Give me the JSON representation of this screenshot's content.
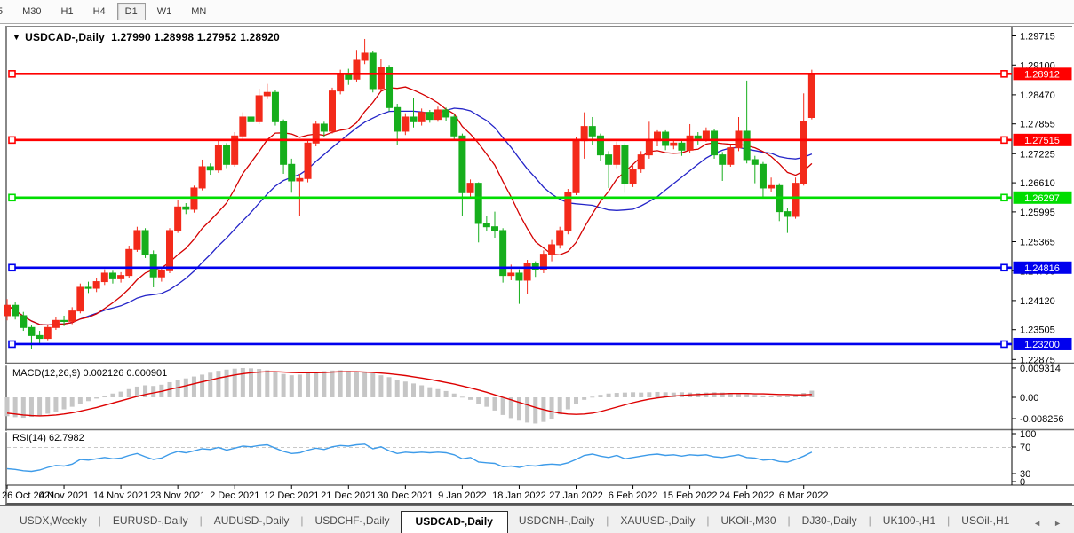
{
  "toolbar": {
    "timeframes": [
      {
        "label": "5",
        "active": false
      },
      {
        "label": "M30",
        "active": false
      },
      {
        "label": "H1",
        "active": false
      },
      {
        "label": "H4",
        "active": false
      },
      {
        "label": "D1",
        "active": true
      },
      {
        "label": "W1",
        "active": false
      },
      {
        "label": "MN",
        "active": false
      }
    ]
  },
  "chart_header": {
    "dropdown_icon": "▼",
    "symbol": "USDCAD-,Daily",
    "ohlc_text": "1.27990 1.28998 1.27952 1.28920"
  },
  "price_axis": {
    "ticks": [
      "1.29715",
      "1.29100",
      "1.28470",
      "1.27855",
      "1.27225",
      "1.26610",
      "1.25995",
      "1.25365",
      "1.24750",
      "1.24120",
      "1.23505",
      "1.22875"
    ]
  },
  "macd_panel": {
    "label": "MACD(12,26,9) 0.002126 0.000901",
    "axis_max": "0.009314",
    "axis_zero": "0.00",
    "axis_min": "-0.008256"
  },
  "rsi_panel": {
    "label": "RSI(14) 62.7982",
    "axis_levels": [
      "100",
      "70",
      "30",
      "0"
    ]
  },
  "date_axis": {
    "labels": [
      "26 Oct 2021",
      "4 Nov 2021",
      "14 Nov 2021",
      "23 Nov 2021",
      "2 Dec 2021",
      "12 Dec 2021",
      "21 Dec 2021",
      "30 Dec 2021",
      "9 Jan 2022",
      "18 Jan 2022",
      "27 Jan 2022",
      "6 Feb 2022",
      "15 Feb 2022",
      "24 Feb 2022",
      "6 Mar 2022"
    ],
    "bars_per_label": 7
  },
  "tabs": {
    "items": [
      {
        "label": "USDX,Weekly",
        "active": false
      },
      {
        "label": "EURUSD-,Daily",
        "active": false
      },
      {
        "label": "AUDUSD-,Daily",
        "active": false
      },
      {
        "label": "USDCHF-,Daily",
        "active": false
      },
      {
        "label": "USDCAD-,Daily",
        "active": true
      },
      {
        "label": "USDCNH-,Daily",
        "active": false
      },
      {
        "label": "XAUUSD-,Daily",
        "active": false
      },
      {
        "label": "UKOil-,M30",
        "active": false
      },
      {
        "label": "DJ30-,Daily",
        "active": false
      },
      {
        "label": "UK100-,H1",
        "active": false
      },
      {
        "label": "USOil-,H1",
        "active": false
      }
    ],
    "scroll_left_icon": "◄",
    "scroll_right_icon": "►"
  },
  "chart_data": {
    "type": "candlestick",
    "symbol": "USDCAD-,Daily",
    "ohlc_current": {
      "open": 1.2799,
      "high": 1.28998,
      "low": 1.27952,
      "close": 1.2892
    },
    "colors": {
      "bull": "#f32a1a",
      "bear": "#16ae1c",
      "line_red": "#ff0000",
      "line_green": "#00dd00",
      "line_blue": "#0000ee",
      "ma_fast": "#d40000",
      "ma_slow": "#2424c8",
      "macd_hist": "#c6c6c6",
      "macd_signal": "#dd0000",
      "rsi_line": "#3d9be9",
      "rsi_level": "#c8c8c8"
    },
    "hlines": [
      {
        "price": 1.28912,
        "label": "1.28912",
        "color": "#ff0000"
      },
      {
        "price": 1.27515,
        "label": "1.27515",
        "color": "#ff0000"
      },
      {
        "price": 1.26297,
        "label": "1.26297",
        "color": "#00dd00"
      },
      {
        "price": 1.24816,
        "label": "1.24816",
        "color": "#0000ee"
      },
      {
        "price": 1.232,
        "label": "1.23200",
        "color": "#0000ee"
      }
    ],
    "overlays": [
      {
        "name": "ma-fast",
        "period": 10
      },
      {
        "name": "ma-slow",
        "period": 20
      }
    ],
    "candles": [
      [
        1.238,
        1.2415,
        1.237,
        1.2402
      ],
      [
        1.2402,
        1.2408,
        1.2372,
        1.238
      ],
      [
        1.238,
        1.2388,
        1.2348,
        1.2355
      ],
      [
        1.2355,
        1.236,
        1.231,
        1.2338
      ],
      [
        1.2338,
        1.2348,
        1.2318,
        1.2332
      ],
      [
        1.2332,
        1.2362,
        1.2328,
        1.2355
      ],
      [
        1.2355,
        1.2378,
        1.235,
        1.237
      ],
      [
        1.237,
        1.238,
        1.2358,
        1.2368
      ],
      [
        1.2368,
        1.2398,
        1.2362,
        1.239
      ],
      [
        1.239,
        1.2448,
        1.2385,
        1.244
      ],
      [
        1.244,
        1.2452,
        1.2428,
        1.2438
      ],
      [
        1.2438,
        1.246,
        1.243,
        1.2452
      ],
      [
        1.2452,
        1.2478,
        1.2445,
        1.247
      ],
      [
        1.247,
        1.2475,
        1.2448,
        1.2458
      ],
      [
        1.2458,
        1.2472,
        1.245,
        1.2465
      ],
      [
        1.2465,
        1.2528,
        1.246,
        1.252
      ],
      [
        1.252,
        1.2568,
        1.2515,
        1.256
      ],
      [
        1.256,
        1.2565,
        1.2502,
        1.251
      ],
      [
        1.251,
        1.2518,
        1.244,
        1.2462
      ],
      [
        1.2462,
        1.2482,
        1.2452,
        1.2475
      ],
      [
        1.2475,
        1.2565,
        1.247,
        1.256
      ],
      [
        1.256,
        1.2625,
        1.2555,
        1.261
      ],
      [
        1.261,
        1.2618,
        1.2595,
        1.2605
      ],
      [
        1.2605,
        1.2655,
        1.2598,
        1.265
      ],
      [
        1.265,
        1.271,
        1.2645,
        1.2695
      ],
      [
        1.2695,
        1.2702,
        1.2678,
        1.2688
      ],
      [
        1.2688,
        1.275,
        1.2682,
        1.274
      ],
      [
        1.274,
        1.2745,
        1.2692,
        1.27
      ],
      [
        1.27,
        1.2768,
        1.2695,
        1.276
      ],
      [
        1.276,
        1.281,
        1.2752,
        1.28
      ],
      [
        1.28,
        1.2806,
        1.278,
        1.279
      ],
      [
        1.279,
        1.286,
        1.2785,
        1.2845
      ],
      [
        1.2845,
        1.287,
        1.2838,
        1.2852
      ],
      [
        1.2852,
        1.2858,
        1.2782,
        1.279
      ],
      [
        1.279,
        1.2795,
        1.268,
        1.27
      ],
      [
        1.27,
        1.2712,
        1.264,
        1.2665
      ],
      [
        1.2665,
        1.268,
        1.259,
        1.267
      ],
      [
        1.267,
        1.2752,
        1.2662,
        1.2745
      ],
      [
        1.2745,
        1.2792,
        1.2738,
        1.2785
      ],
      [
        1.2785,
        1.279,
        1.2758,
        1.277
      ],
      [
        1.277,
        1.2862,
        1.2765,
        1.2855
      ],
      [
        1.2855,
        1.29,
        1.2848,
        1.289
      ],
      [
        1.289,
        1.2902,
        1.2868,
        1.288
      ],
      [
        1.288,
        1.2942,
        1.2875,
        1.292
      ],
      [
        1.292,
        1.2965,
        1.2912,
        1.2935
      ],
      [
        1.2935,
        1.294,
        1.2852,
        1.286
      ],
      [
        1.286,
        1.2922,
        1.2855,
        1.2905
      ],
      [
        1.2905,
        1.291,
        1.2812,
        1.282
      ],
      [
        1.282,
        1.2828,
        1.274,
        1.277
      ],
      [
        1.277,
        1.2808,
        1.2762,
        1.28
      ],
      [
        1.28,
        1.284,
        1.2778,
        1.279
      ],
      [
        1.279,
        1.2818,
        1.2782,
        1.281
      ],
      [
        1.281,
        1.2815,
        1.2788,
        1.2795
      ],
      [
        1.2795,
        1.2822,
        1.279,
        1.2815
      ],
      [
        1.2815,
        1.282,
        1.2792,
        1.28
      ],
      [
        1.28,
        1.2805,
        1.2752,
        1.276
      ],
      [
        1.276,
        1.2765,
        1.259,
        1.264
      ],
      [
        1.264,
        1.2668,
        1.2632,
        1.266
      ],
      [
        1.266,
        1.2662,
        1.2535,
        1.2575
      ],
      [
        1.2575,
        1.259,
        1.2558,
        1.2568
      ],
      [
        1.2568,
        1.26,
        1.2545,
        1.256
      ],
      [
        1.256,
        1.2565,
        1.245,
        1.2465
      ],
      [
        1.2465,
        1.2488,
        1.2455,
        1.247
      ],
      [
        1.247,
        1.2478,
        1.2405,
        1.2455
      ],
      [
        1.2455,
        1.2498,
        1.2425,
        1.249
      ],
      [
        1.249,
        1.2495,
        1.2462,
        1.2478
      ],
      [
        1.2478,
        1.2518,
        1.247,
        1.251
      ],
      [
        1.251,
        1.254,
        1.2495,
        1.253
      ],
      [
        1.253,
        1.2568,
        1.2522,
        1.256
      ],
      [
        1.256,
        1.2648,
        1.2552,
        1.264
      ],
      [
        1.264,
        1.2758,
        1.2635,
        1.275
      ],
      [
        1.275,
        1.281,
        1.2712,
        1.278
      ],
      [
        1.278,
        1.28,
        1.274,
        1.276
      ],
      [
        1.276,
        1.2765,
        1.2708,
        1.272
      ],
      [
        1.272,
        1.2728,
        1.265,
        1.27
      ],
      [
        1.27,
        1.2748,
        1.2692,
        1.274
      ],
      [
        1.274,
        1.2745,
        1.264,
        1.266
      ],
      [
        1.266,
        1.2698,
        1.2652,
        1.269
      ],
      [
        1.269,
        1.2728,
        1.2682,
        1.272
      ],
      [
        1.272,
        1.279,
        1.2712,
        1.275
      ],
      [
        1.275,
        1.2772,
        1.2738,
        1.2768
      ],
      [
        1.2768,
        1.2772,
        1.273,
        1.274
      ],
      [
        1.274,
        1.2752,
        1.2732,
        1.2745
      ],
      [
        1.2745,
        1.275,
        1.2718,
        1.273
      ],
      [
        1.273,
        1.2785,
        1.2725,
        1.276
      ],
      [
        1.276,
        1.2768,
        1.2742,
        1.2755
      ],
      [
        1.2755,
        1.2778,
        1.2748,
        1.277
      ],
      [
        1.277,
        1.2775,
        1.2712,
        1.272
      ],
      [
        1.272,
        1.2726,
        1.2665,
        1.27
      ],
      [
        1.27,
        1.2742,
        1.2695,
        1.2735
      ],
      [
        1.2735,
        1.28,
        1.2728,
        1.277
      ],
      [
        1.277,
        1.2877,
        1.2702,
        1.271
      ],
      [
        1.271,
        1.2718,
        1.266,
        1.27
      ],
      [
        1.27,
        1.2705,
        1.263,
        1.265
      ],
      [
        1.265,
        1.2672,
        1.2642,
        1.2655
      ],
      [
        1.2655,
        1.266,
        1.258,
        1.26
      ],
      [
        1.26,
        1.2608,
        1.2555,
        1.259
      ],
      [
        1.259,
        1.2672,
        1.2585,
        1.266
      ],
      [
        1.266,
        1.285,
        1.2655,
        1.279
      ],
      [
        1.2799,
        1.29,
        1.2795,
        1.2892
      ]
    ],
    "macd": {
      "params": "12,26,9",
      "current_main": 0.002126,
      "current_signal": 0.000901,
      "axis": {
        "max": 0.009314,
        "min": -0.008256
      },
      "histogram": [
        -0.006,
        -0.0063,
        -0.0065,
        -0.0062,
        -0.0058,
        -0.0052,
        -0.0045,
        -0.0038,
        -0.003,
        -0.002,
        -0.0012,
        -0.0004,
        0.0004,
        0.0012,
        0.0018,
        0.0026,
        0.0034,
        0.0038,
        0.0036,
        0.004,
        0.0048,
        0.0055,
        0.006,
        0.0066,
        0.0072,
        0.0078,
        0.0084,
        0.0088,
        0.0091,
        0.0093,
        0.0092,
        0.009,
        0.0086,
        0.008,
        0.0074,
        0.007,
        0.0072,
        0.0076,
        0.008,
        0.0083,
        0.0085,
        0.0086,
        0.0084,
        0.0082,
        0.008,
        0.0076,
        0.007,
        0.0064,
        0.0056,
        0.005,
        0.0044,
        0.0038,
        0.0032,
        0.0026,
        0.002,
        0.0012,
        0.0002,
        -0.0008,
        -0.002,
        -0.003,
        -0.0042,
        -0.0056,
        -0.0066,
        -0.0074,
        -0.008,
        -0.0083,
        -0.0078,
        -0.0068,
        -0.0054,
        -0.0038,
        -0.0022,
        -0.0008,
        0.0002,
        0.0008,
        0.0012,
        0.0014,
        0.0015,
        0.0016,
        0.0015,
        0.0016,
        0.0017,
        0.0016,
        0.0015,
        0.0016,
        0.0015,
        0.0014,
        0.0015,
        0.0016,
        0.0015,
        0.0014,
        0.0012,
        0.001,
        0.0008,
        0.0006,
        0.0005,
        0.0005,
        0.0006,
        0.0008,
        0.0014,
        0.0021
      ],
      "signal": [
        -0.005,
        -0.0053,
        -0.0056,
        -0.0058,
        -0.0059,
        -0.0058,
        -0.0056,
        -0.0053,
        -0.0049,
        -0.0044,
        -0.0038,
        -0.0032,
        -0.0025,
        -0.0018,
        -0.0011,
        -0.0004,
        0.0003,
        0.0009,
        0.0014,
        0.0019,
        0.0025,
        0.0031,
        0.0037,
        0.0043,
        0.0049,
        0.0055,
        0.0061,
        0.0066,
        0.0071,
        0.0075,
        0.0078,
        0.008,
        0.0081,
        0.0081,
        0.008,
        0.0079,
        0.0078,
        0.0078,
        0.0078,
        0.0079,
        0.008,
        0.0081,
        0.0081,
        0.0081,
        0.008,
        0.0079,
        0.0077,
        0.0075,
        0.0072,
        0.0069,
        0.0065,
        0.0061,
        0.0057,
        0.0052,
        0.0047,
        0.0042,
        0.0036,
        0.003,
        0.0023,
        0.0016,
        0.0008,
        0.0,
        -0.0008,
        -0.0016,
        -0.0024,
        -0.0032,
        -0.0039,
        -0.0045,
        -0.005,
        -0.0053,
        -0.0054,
        -0.0053,
        -0.005,
        -0.0045,
        -0.0038,
        -0.0031,
        -0.0024,
        -0.0017,
        -0.0011,
        -0.0006,
        -0.0002,
        0.0001,
        0.0004,
        0.0006,
        0.0008,
        0.0009,
        0.001,
        0.0011,
        0.0011,
        0.0012,
        0.0012,
        0.0012,
        0.0011,
        0.0011,
        0.001,
        0.0009,
        0.0009,
        0.0008,
        0.0008,
        0.0009
      ]
    },
    "rsi": {
      "period": 14,
      "current": 62.7982,
      "levels": [
        70,
        30
      ],
      "values": [
        38,
        37,
        35,
        34,
        36,
        40,
        43,
        42,
        45,
        52,
        51,
        53,
        55,
        53,
        54,
        58,
        61,
        56,
        52,
        54,
        60,
        64,
        62,
        65,
        68,
        67,
        70,
        66,
        69,
        72,
        71,
        73,
        74,
        69,
        64,
        61,
        62,
        66,
        69,
        67,
        71,
        73,
        72,
        74,
        75,
        68,
        71,
        65,
        61,
        63,
        62,
        63,
        62,
        63,
        62,
        59,
        53,
        55,
        48,
        47,
        46,
        41,
        42,
        40,
        43,
        42,
        44,
        45,
        44,
        47,
        52,
        58,
        60,
        57,
        55,
        58,
        53,
        55,
        57,
        59,
        60,
        58,
        59,
        57,
        59,
        58,
        59,
        56,
        55,
        57,
        59,
        55,
        54,
        51,
        52,
        49,
        48,
        52,
        57,
        63
      ]
    }
  }
}
